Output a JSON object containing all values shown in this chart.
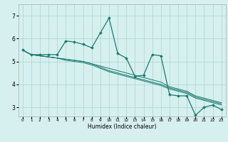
{
  "xlabel": "Humidex (Indice chaleur)",
  "background_color": "#d6f0ef",
  "grid_color": "#b0d8d8",
  "line_color": "#1a7a6e",
  "x_ticks": [
    0,
    1,
    2,
    3,
    4,
    5,
    6,
    7,
    8,
    9,
    10,
    11,
    12,
    13,
    14,
    15,
    16,
    17,
    18,
    19,
    20,
    21,
    22,
    23
  ],
  "y_ticks": [
    3,
    4,
    5,
    6,
    7
  ],
  "xlim": [
    -0.5,
    23.5
  ],
  "ylim": [
    2.6,
    7.5
  ],
  "series": [
    [
      5.5,
      5.3,
      5.3,
      5.3,
      5.3,
      5.9,
      5.85,
      5.75,
      5.6,
      6.25,
      6.9,
      5.35,
      5.15,
      4.35,
      4.4,
      5.3,
      5.25,
      3.55,
      3.5,
      3.5,
      2.65,
      3.0,
      3.1,
      2.9
    ],
    [
      5.5,
      5.3,
      5.25,
      5.2,
      5.15,
      5.1,
      5.05,
      5.0,
      4.9,
      4.8,
      4.7,
      4.6,
      4.5,
      4.4,
      4.3,
      4.2,
      4.1,
      3.9,
      3.8,
      3.7,
      3.5,
      3.4,
      3.3,
      3.2
    ],
    [
      5.5,
      5.3,
      5.25,
      5.2,
      5.15,
      5.1,
      5.05,
      5.0,
      4.9,
      4.75,
      4.6,
      4.5,
      4.4,
      4.3,
      4.2,
      4.1,
      4.0,
      3.85,
      3.75,
      3.65,
      3.45,
      3.35,
      3.25,
      3.15
    ],
    [
      5.5,
      5.3,
      5.25,
      5.2,
      5.15,
      5.05,
      5.0,
      4.95,
      4.85,
      4.7,
      4.55,
      4.45,
      4.35,
      4.25,
      4.15,
      4.05,
      3.95,
      3.8,
      3.7,
      3.6,
      3.4,
      3.3,
      3.2,
      3.1
    ]
  ]
}
